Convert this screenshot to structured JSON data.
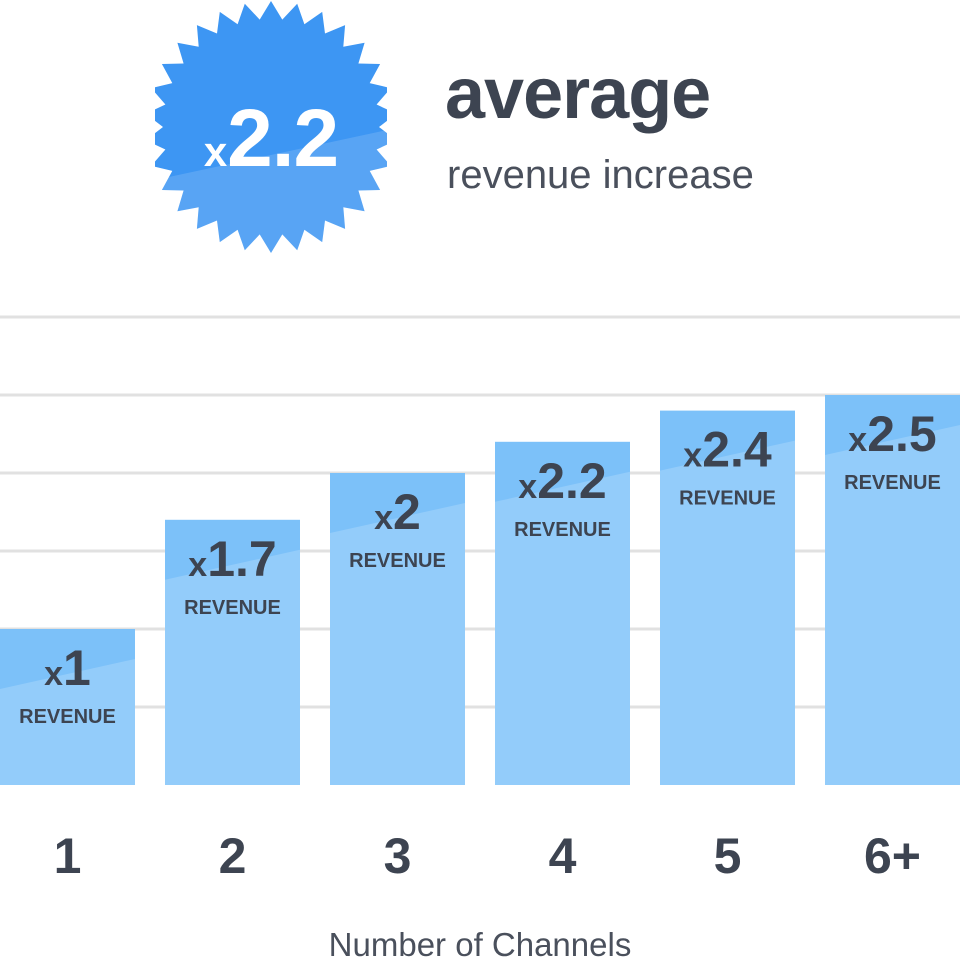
{
  "summary": {
    "badge_prefix": "x",
    "badge_value": "2.2",
    "headline": "average",
    "subheadline": "revenue increase"
  },
  "colors": {
    "badge": "#3d96f3",
    "bar_light": "#98cdfa",
    "bar_dark": "#7cc1f9",
    "text": "#3d4451",
    "grid": "#e1e1e1"
  },
  "chart_data": {
    "type": "bar",
    "categories": [
      "1",
      "2",
      "3",
      "4",
      "5",
      "6+"
    ],
    "values": [
      1,
      1.7,
      2,
      2.2,
      2.4,
      2.5
    ],
    "value_labels": [
      "x1",
      "x1.7",
      "x2",
      "x2.2",
      "x2.4",
      "x2.5"
    ],
    "data_label_prefix": "x",
    "data_label_caption": "REVENUE",
    "xlabel": "Number of Channels",
    "ylabel": "",
    "ylim": [
      0,
      3
    ],
    "grid": true
  }
}
